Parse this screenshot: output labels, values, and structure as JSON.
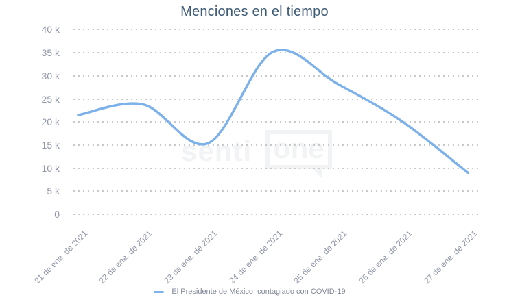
{
  "title": "Menciones en el tiempo",
  "watermark": {
    "text": "senti",
    "boxed_text": "one"
  },
  "legend": {
    "label": "El Presidente de México, contagiado con COVID-19"
  },
  "colors": {
    "line": "#7cb1ea",
    "title": "#3d5a76",
    "axis_label": "#9096a8",
    "grid_dot": "#c6c8cb",
    "legend_text": "#828898",
    "watermark": "#f2f3f4"
  },
  "chart_data": {
    "type": "line",
    "title": "Menciones en el tiempo",
    "categories": [
      "21 de ene. de 2021",
      "22 de ene. de 2021",
      "23 de ene. de 2021",
      "24 de ene. de 2021",
      "25 de ene. de 2021",
      "26 de ene. de 2021",
      "27 de ene. de 2021"
    ],
    "series": [
      {
        "name": "El Presidente de México, contagiado con COVID-19",
        "values": [
          21500,
          23800,
          15400,
          35200,
          28200,
          20000,
          9000
        ]
      }
    ],
    "xlabel": "",
    "ylabel": "",
    "ylim": [
      0,
      40000
    ],
    "ytick_step": 5000,
    "ytick_labels_top_to_bottom": [
      "40 k",
      "35 k",
      "30 k",
      "25 k",
      "20 k",
      "15 k",
      "10 k",
      "5 k",
      "0"
    ],
    "grid": "dotted-horizontal",
    "smooth": true,
    "legend_position": "bottom-center"
  }
}
